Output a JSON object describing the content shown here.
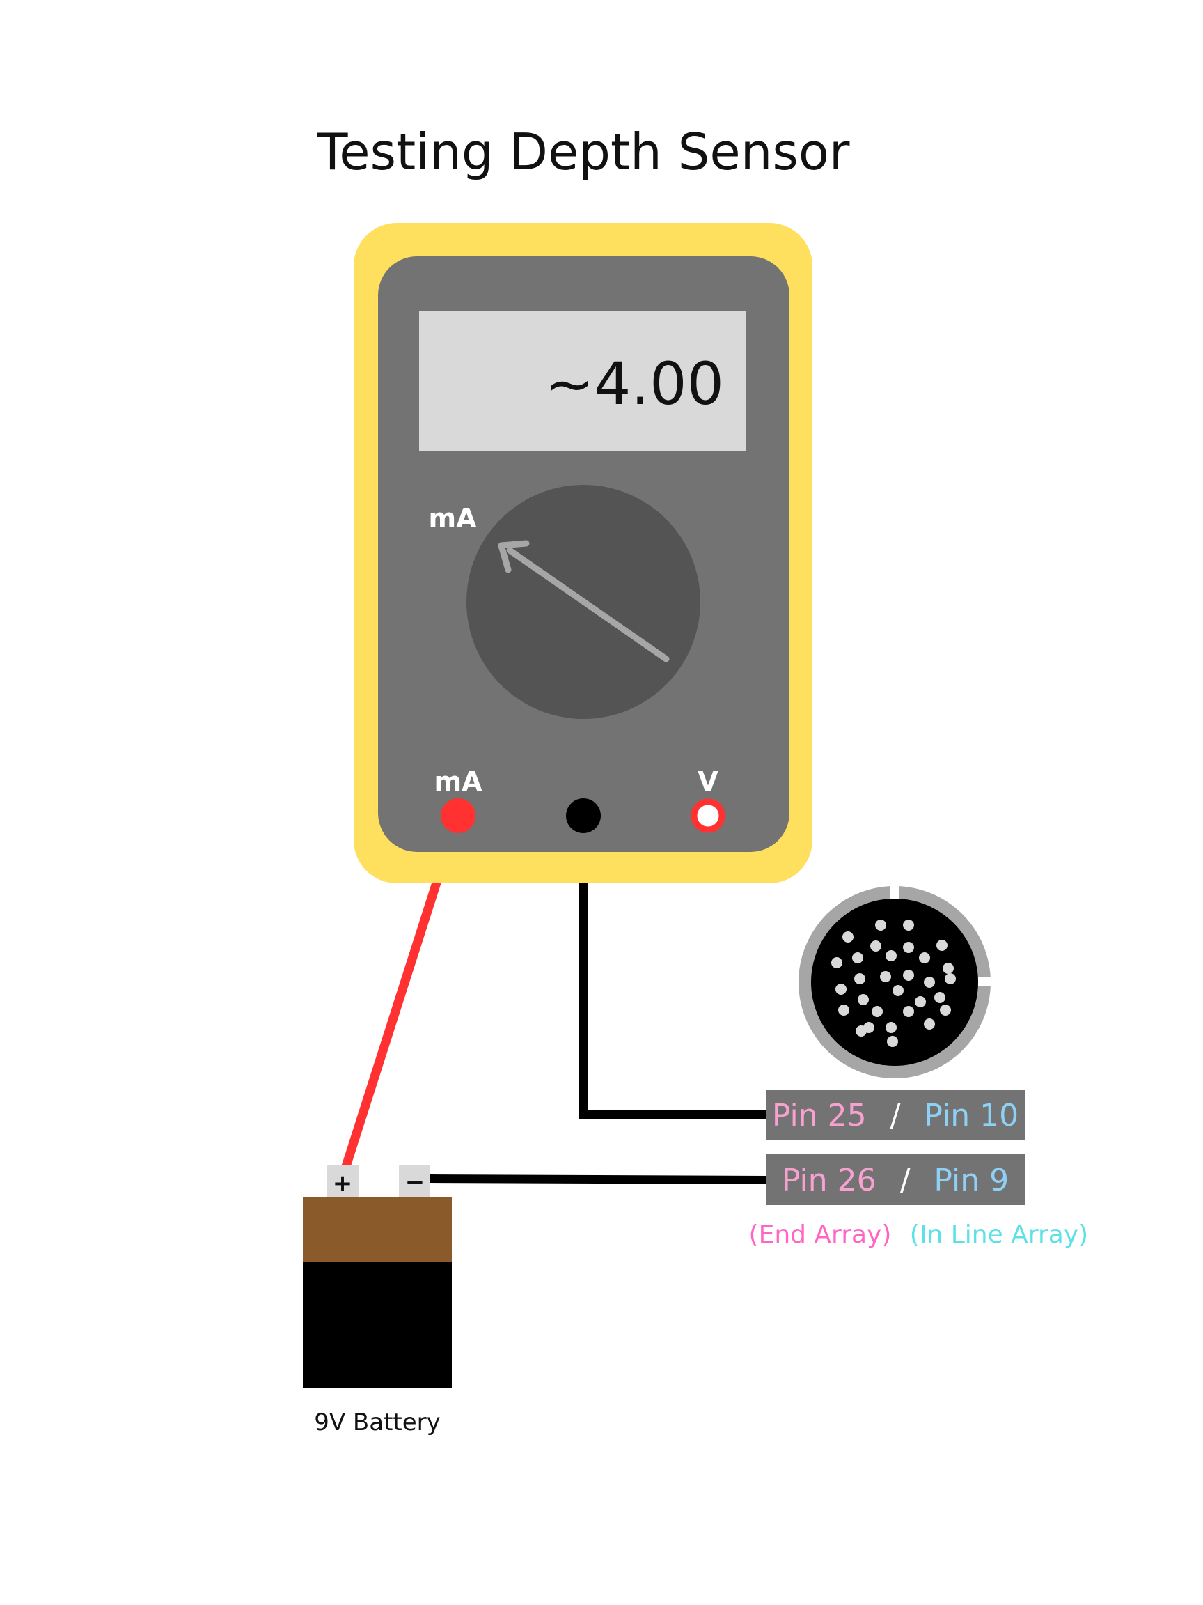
{
  "title": "Testing Depth Sensor",
  "multimeter": {
    "display_value": "~4.00",
    "dial_label": "mA",
    "jack_left_label": "mA",
    "jack_right_label": "V"
  },
  "connector": {
    "pin_rows": [
      {
        "end_pin": "Pin 25",
        "separator": "/",
        "inline_pin": "Pin 10"
      },
      {
        "end_pin": "Pin 26",
        "separator": "/",
        "inline_pin": "Pin 9"
      }
    ],
    "legend": {
      "end_array": "(End Array)",
      "inline_array": "(In Line Array)"
    }
  },
  "battery": {
    "plus": "+",
    "minus": "−",
    "label": "9V Battery"
  },
  "colors": {
    "meter_case": "#FEDF5E",
    "meter_face": "#737373",
    "display_bg": "#D9D9D9",
    "dial": "#545454",
    "pointer": "#A6A6A6",
    "red_lead": "#FF3131",
    "black_lead": "#000000",
    "pin_box": "#737373",
    "end_array": "#FF66C4",
    "inline_array": "#5CE1E6",
    "end_pin_text": "#F7A1D0",
    "inline_pin_text": "#8FD0F5",
    "battery_top": "#8B5A2B",
    "battery_body": "#000000",
    "connector_ring": "#A6A6A6"
  }
}
